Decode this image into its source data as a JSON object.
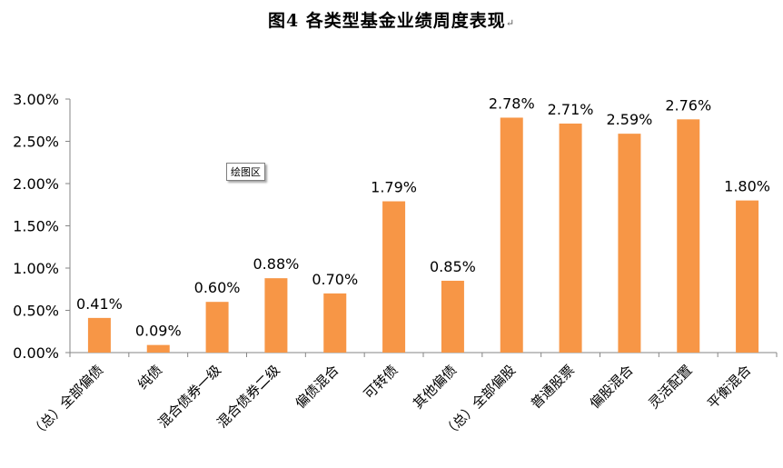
{
  "title": "图4 各类型基金业绩周度表现",
  "title_mark": "↵",
  "plot_area_tag": "绘图区",
  "chart_data": {
    "type": "bar",
    "title": "图4 各类型基金业绩周度表现",
    "categories": [
      "（总）全部偏债",
      "纯债",
      "混合债券一级",
      "混合债券二级",
      "偏债混合",
      "可转债",
      "其他偏债",
      "（总）全部偏股",
      "普通股票",
      "偏股混合",
      "灵活配置",
      "平衡混合"
    ],
    "values": [
      0.41,
      0.09,
      0.6,
      0.88,
      0.7,
      1.79,
      0.85,
      2.78,
      2.71,
      2.59,
      2.76,
      1.8
    ],
    "value_labels": [
      "0.41%",
      "0.09%",
      "0.60%",
      "0.88%",
      "0.70%",
      "1.79%",
      "0.85%",
      "2.78%",
      "2.71%",
      "2.59%",
      "2.76%",
      "1.80%"
    ],
    "ylim": [
      0,
      3.0
    ],
    "yticks": [
      "0.00%",
      "0.50%",
      "1.00%",
      "1.50%",
      "2.00%",
      "2.50%",
      "3.00%"
    ],
    "ytick_values": [
      0,
      0.5,
      1.0,
      1.5,
      2.0,
      2.5,
      3.0
    ],
    "bar_color": "#F79646",
    "grid": false,
    "legend": "none"
  }
}
